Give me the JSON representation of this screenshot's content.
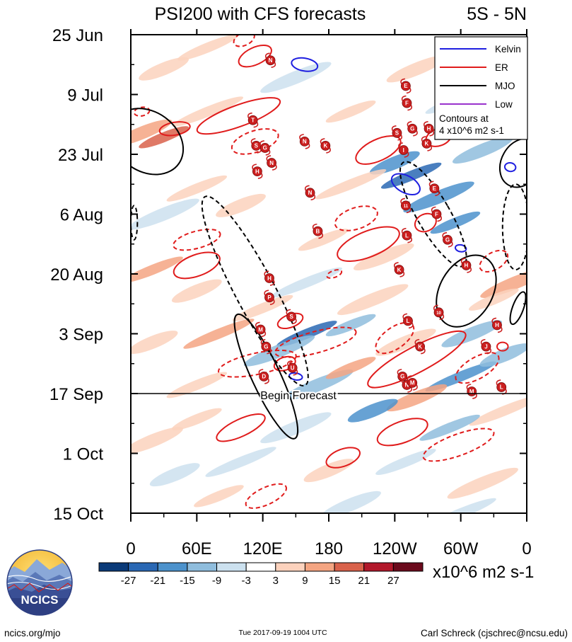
{
  "chart_data": {
    "type": "heatmap",
    "title": "PSI200 with CFS forecasts",
    "region": "5S - 5N",
    "x_tick_labels": [
      "0",
      "60E",
      "120E",
      "180",
      "120W",
      "60W",
      "0"
    ],
    "x_tick_degrees": [
      0,
      60,
      120,
      180,
      240,
      300,
      360
    ],
    "y_tick_labels": [
      "25 Jun",
      "9 Jul",
      "23 Jul",
      "6 Aug",
      "20 Aug",
      "3 Sep",
      "17 Sep",
      "1 Oct",
      "15 Oct"
    ],
    "y_tick_days": [
      0,
      14,
      28,
      42,
      56,
      70,
      84,
      98,
      112
    ],
    "forecast_start_day": 84,
    "forecast_label": "Begin Forecast",
    "legend": {
      "entries": [
        {
          "label": "Kelvin",
          "color": "#1f1fe0"
        },
        {
          "label": "ER",
          "color": "#e01c1c"
        },
        {
          "label": "MJO",
          "color": "#000000"
        },
        {
          "label": "Low",
          "color": "#9933cc"
        }
      ],
      "note_line1": "Contours at",
      "note_line2": "4 x10^6 m2 s-1"
    },
    "colorbar": {
      "labels": [
        "-27",
        "-21",
        "-15",
        "-9",
        "-3",
        "3",
        "9",
        "15",
        "21",
        "27"
      ],
      "colors": [
        "#0a3a78",
        "#2a68b4",
        "#4c92cc",
        "#8fbddd",
        "#cce1ef",
        "#ffffff",
        "#fcd2bd",
        "#f4a582",
        "#d9624b",
        "#b2182b",
        "#6b0a1c"
      ],
      "units": "x10^6 m2 s-1"
    },
    "contours": [
      {
        "wave": "Kelvin",
        "sign": "pos",
        "lon": 158,
        "day": 7,
        "dlon": 12,
        "dday": 1.5,
        "angle": 10
      },
      {
        "wave": "Kelvin",
        "sign": "pos",
        "lon": 250,
        "day": 35,
        "dlon": 14,
        "dday": 2,
        "angle": 28
      },
      {
        "wave": "Kelvin",
        "sign": "pos",
        "lon": 345,
        "day": 31,
        "dlon": 5,
        "dday": 1,
        "angle": 10
      },
      {
        "wave": "Kelvin",
        "sign": "pos",
        "lon": 150,
        "day": 80,
        "dlon": 6,
        "dday": 0.8,
        "angle": 10
      },
      {
        "wave": "Kelvin",
        "sign": "pos",
        "lon": 300,
        "day": 50,
        "dlon": 5,
        "dday": 0.8,
        "angle": 10
      },
      {
        "wave": "ER",
        "sign": "pos",
        "lon": 113,
        "day": 5,
        "dlon": 16,
        "dday": 2,
        "angle": -25
      },
      {
        "wave": "ER",
        "sign": "neg",
        "lon": 103,
        "day": 1,
        "dlon": 10,
        "dday": 1.5,
        "angle": -25
      },
      {
        "wave": "ER",
        "sign": "pos",
        "lon": 98,
        "day": 19,
        "dlon": 40,
        "dday": 2.5,
        "angle": -20
      },
      {
        "wave": "ER",
        "sign": "neg",
        "lon": 113,
        "day": 25,
        "dlon": 22,
        "dday": 2.5,
        "angle": -18
      },
      {
        "wave": "ER",
        "sign": "pos",
        "lon": 40,
        "day": 22,
        "dlon": 14,
        "dday": 1.5,
        "angle": -10
      },
      {
        "wave": "ER",
        "sign": "pos",
        "lon": 225,
        "day": 27,
        "dlon": 22,
        "dday": 2.5,
        "angle": -25
      },
      {
        "wave": "ER",
        "sign": "pos",
        "lon": 280,
        "day": 24,
        "dlon": 12,
        "dday": 2,
        "angle": -20
      },
      {
        "wave": "ER",
        "sign": "neg",
        "lon": 205,
        "day": 43,
        "dlon": 20,
        "dday": 2.5,
        "angle": -18
      },
      {
        "wave": "ER",
        "sign": "pos",
        "lon": 216,
        "day": 49,
        "dlon": 30,
        "dday": 3,
        "angle": -22
      },
      {
        "wave": "ER",
        "sign": "pos",
        "lon": 268,
        "day": 44,
        "dlon": 10,
        "dday": 2,
        "angle": -25
      },
      {
        "wave": "ER",
        "sign": "neg",
        "lon": 60,
        "day": 48,
        "dlon": 22,
        "dday": 2,
        "angle": -15
      },
      {
        "wave": "ER",
        "sign": "pos",
        "lon": 60,
        "day": 54,
        "dlon": 22,
        "dday": 2.5,
        "angle": -20
      },
      {
        "wave": "ER",
        "sign": "neg",
        "lon": 330,
        "day": 53,
        "dlon": 14,
        "dday": 2,
        "angle": -30
      },
      {
        "wave": "ER",
        "sign": "neg",
        "lon": 185,
        "day": 56,
        "dlon": 7,
        "dday": 0.8,
        "angle": -20
      },
      {
        "wave": "ER",
        "sign": "pos",
        "lon": 145,
        "day": 67,
        "dlon": 12,
        "dday": 1.5,
        "angle": -20
      },
      {
        "wave": "ER",
        "sign": "neg",
        "lon": 168,
        "day": 72,
        "dlon": 38,
        "dday": 2.5,
        "angle": -15
      },
      {
        "wave": "ER",
        "sign": "neg",
        "lon": 240,
        "day": 71,
        "dlon": 20,
        "dday": 2.5,
        "angle": -35
      },
      {
        "wave": "ER",
        "sign": "pos",
        "lon": 260,
        "day": 76,
        "dlon": 50,
        "dday": 3,
        "angle": -28
      },
      {
        "wave": "ER",
        "sign": "neg",
        "lon": 315,
        "day": 78,
        "dlon": 22,
        "dday": 2.5,
        "angle": -30
      },
      {
        "wave": "ER",
        "sign": "neg",
        "lon": 115,
        "day": 77,
        "dlon": 36,
        "dday": 2.5,
        "angle": -12
      },
      {
        "wave": "ER",
        "sign": "pos",
        "lon": 140,
        "day": 77,
        "dlon": 10,
        "dday": 1.5,
        "angle": -20
      },
      {
        "wave": "ER",
        "sign": "pos",
        "lon": 338,
        "day": 73,
        "dlon": 5,
        "dday": 1,
        "angle": 0
      },
      {
        "wave": "ER",
        "sign": "neg",
        "lon": 10,
        "day": 18,
        "dlon": 7,
        "dday": 1,
        "angle": -10
      },
      {
        "wave": "ER",
        "sign": "pos",
        "lon": 100,
        "day": 92,
        "dlon": 24,
        "dday": 2,
        "angle": -25
      },
      {
        "wave": "ER",
        "sign": "pos",
        "lon": 193,
        "day": 99,
        "dlon": 16,
        "dday": 2,
        "angle": -20
      },
      {
        "wave": "ER",
        "sign": "pos",
        "lon": 247,
        "day": 93,
        "dlon": 24,
        "dday": 2.5,
        "angle": -20
      },
      {
        "wave": "ER",
        "sign": "neg",
        "lon": 298,
        "day": 96,
        "dlon": 34,
        "dday": 2.5,
        "angle": -20
      },
      {
        "wave": "ER",
        "sign": "neg",
        "lon": 123,
        "day": 108,
        "dlon": 20,
        "dday": 2,
        "angle": -25
      },
      {
        "wave": "MJO",
        "sign": "pos",
        "lon": 15,
        "day": 25,
        "dlon": 35,
        "dday": 7,
        "angle": 35
      },
      {
        "wave": "MJO",
        "sign": "neg",
        "lon": 113,
        "day": 60,
        "dlon": 18,
        "dday": 25,
        "angle": -28
      },
      {
        "wave": "MJO",
        "sign": "pos",
        "lon": 123,
        "day": 80,
        "dlon": 13,
        "dday": 16,
        "angle": -25
      },
      {
        "wave": "MJO",
        "sign": "neg",
        "lon": 275,
        "day": 42,
        "dlon": 15,
        "dday": 14,
        "angle": -30
      },
      {
        "wave": "MJO",
        "sign": "pos",
        "lon": 305,
        "day": 60,
        "dlon": 24,
        "dday": 9,
        "angle": 30
      },
      {
        "wave": "MJO",
        "sign": "pos",
        "lon": 355,
        "day": 30,
        "dlon": 18,
        "dday": 6,
        "angle": 30
      },
      {
        "wave": "MJO",
        "sign": "neg",
        "lon": 350,
        "day": 45,
        "dlon": 12,
        "dday": 10,
        "angle": 0
      },
      {
        "wave": "MJO",
        "sign": "pos",
        "lon": 352,
        "day": 64,
        "dlon": 5,
        "dday": 4,
        "angle": 20
      },
      {
        "wave": "MJO",
        "sign": "neg",
        "lon": 3,
        "day": 44,
        "dlon": 3,
        "dday": 4,
        "angle": 0
      }
    ],
    "storms": [
      {
        "label": "N",
        "lon": 127,
        "day": 6
      },
      {
        "label": "E",
        "lon": 250,
        "day": 12
      },
      {
        "label": "F",
        "lon": 251,
        "day": 16
      },
      {
        "label": "T",
        "lon": 111,
        "day": 20
      },
      {
        "label": "G",
        "lon": 256,
        "day": 22
      },
      {
        "label": "S",
        "lon": 242,
        "day": 23
      },
      {
        "label": "H",
        "lon": 271,
        "day": 22
      },
      {
        "label": "S",
        "lon": 114,
        "day": 26
      },
      {
        "label": "G",
        "lon": 122,
        "day": 26.5
      },
      {
        "label": "N",
        "lon": 158,
        "day": 25
      },
      {
        "label": "K",
        "lon": 177,
        "day": 26
      },
      {
        "label": "I",
        "lon": 248,
        "day": 27
      },
      {
        "label": "K",
        "lon": 269,
        "day": 25.5
      },
      {
        "label": "H",
        "lon": 115,
        "day": 32
      },
      {
        "label": "N",
        "lon": 128,
        "day": 30
      },
      {
        "label": "E",
        "lon": 276,
        "day": 36
      },
      {
        "label": "N",
        "lon": 163,
        "day": 37
      },
      {
        "label": "11",
        "lon": 250,
        "day": 40
      },
      {
        "label": "F",
        "lon": 278,
        "day": 42
      },
      {
        "label": "B",
        "lon": 170,
        "day": 46
      },
      {
        "label": "L",
        "lon": 251,
        "day": 47
      },
      {
        "label": "G",
        "lon": 288,
        "day": 48
      },
      {
        "label": "H",
        "lon": 305,
        "day": 54
      },
      {
        "label": "K",
        "lon": 244,
        "day": 55
      },
      {
        "label": "H",
        "lon": 126,
        "day": 57
      },
      {
        "label": "P",
        "lon": 126,
        "day": 61.5
      },
      {
        "label": "S",
        "lon": 146,
        "day": 66
      },
      {
        "label": "10",
        "lon": 280,
        "day": 65
      },
      {
        "label": "L",
        "lon": 252,
        "day": 67
      },
      {
        "label": "M",
        "lon": 118,
        "day": 69
      },
      {
        "label": "G",
        "lon": 123,
        "day": 73
      },
      {
        "label": "K",
        "lon": 263,
        "day": 73
      },
      {
        "label": "J",
        "lon": 323,
        "day": 73
      },
      {
        "label": "H",
        "lon": 333,
        "day": 68
      },
      {
        "label": "U",
        "lon": 147,
        "day": 78
      },
      {
        "label": "D",
        "lon": 121,
        "day": 80
      },
      {
        "label": "G",
        "lon": 247,
        "day": 80
      },
      {
        "label": "N",
        "lon": 251,
        "day": 82
      },
      {
        "label": "M",
        "lon": 256,
        "day": 81.5
      },
      {
        "label": "M",
        "lon": 310,
        "day": 83.5
      },
      {
        "label": "L",
        "lon": 337,
        "day": 82.5
      }
    ],
    "anomaly_blobs": [
      {
        "lon": 30,
        "day": 24,
        "v": 21
      },
      {
        "lon": 10,
        "day": 23,
        "v": 15
      },
      {
        "lon": 70,
        "day": 18,
        "v": 9
      },
      {
        "lon": 30,
        "day": 8,
        "v": 9
      },
      {
        "lon": 70,
        "day": 3,
        "v": 9
      },
      {
        "lon": 150,
        "day": 10,
        "v": -3
      },
      {
        "lon": 200,
        "day": 18,
        "v": 9
      },
      {
        "lon": 260,
        "day": 8,
        "v": 9
      },
      {
        "lon": 300,
        "day": 15,
        "v": -3
      },
      {
        "lon": 240,
        "day": 30,
        "v": -15
      },
      {
        "lon": 255,
        "day": 33,
        "v": -21
      },
      {
        "lon": 280,
        "day": 38,
        "v": -15
      },
      {
        "lon": 295,
        "day": 44,
        "v": -15
      },
      {
        "lon": 320,
        "day": 27,
        "v": -9
      },
      {
        "lon": 200,
        "day": 35,
        "v": 9
      },
      {
        "lon": 100,
        "day": 40,
        "v": 9
      },
      {
        "lon": 60,
        "day": 36,
        "v": 9
      },
      {
        "lon": 30,
        "day": 42,
        "v": -3
      },
      {
        "lon": 175,
        "day": 48,
        "v": 9
      },
      {
        "lon": 230,
        "day": 52,
        "v": 9
      },
      {
        "lon": 160,
        "day": 58,
        "v": -3
      },
      {
        "lon": 60,
        "day": 60,
        "v": 9
      },
      {
        "lon": 20,
        "day": 55,
        "v": 15
      },
      {
        "lon": 350,
        "day": 58,
        "v": 15
      },
      {
        "lon": 330,
        "day": 62,
        "v": 9
      },
      {
        "lon": 310,
        "day": 70,
        "v": -9
      },
      {
        "lon": 300,
        "day": 80,
        "v": -15
      },
      {
        "lon": 340,
        "day": 75,
        "v": -9
      },
      {
        "lon": 160,
        "day": 70,
        "v": -21
      },
      {
        "lon": 135,
        "day": 74,
        "v": -9
      },
      {
        "lon": 200,
        "day": 68,
        "v": -9
      },
      {
        "lon": 250,
        "day": 72,
        "v": 9
      },
      {
        "lon": 80,
        "day": 70,
        "v": 15
      },
      {
        "lon": 20,
        "day": 72,
        "v": 9
      },
      {
        "lon": 60,
        "day": 82,
        "v": 9
      },
      {
        "lon": 170,
        "day": 82,
        "v": -9
      },
      {
        "lon": 200,
        "day": 78,
        "v": 15
      },
      {
        "lon": 260,
        "day": 85,
        "v": 15
      },
      {
        "lon": 340,
        "day": 88,
        "v": 9
      },
      {
        "lon": 220,
        "day": 88,
        "v": -15
      },
      {
        "lon": 290,
        "day": 92,
        "v": -9
      },
      {
        "lon": 150,
        "day": 92,
        "v": -3
      },
      {
        "lon": 60,
        "day": 90,
        "v": 9
      },
      {
        "lon": 20,
        "day": 95,
        "v": 9
      },
      {
        "lon": 100,
        "day": 100,
        "v": -3
      },
      {
        "lon": 180,
        "day": 102,
        "v": 9
      },
      {
        "lon": 250,
        "day": 100,
        "v": -3
      },
      {
        "lon": 320,
        "day": 105,
        "v": 9
      },
      {
        "lon": 80,
        "day": 108,
        "v": 9
      },
      {
        "lon": 200,
        "day": 110,
        "v": -3
      },
      {
        "lon": 300,
        "day": 112,
        "v": -3
      },
      {
        "lon": 40,
        "day": 103,
        "v": -3
      },
      {
        "lon": 120,
        "day": 64,
        "v": 9
      },
      {
        "lon": 220,
        "day": 62,
        "v": 9
      }
    ]
  },
  "logo": {
    "text": "NCICS"
  },
  "footer": {
    "left": "ncics.org/mjo",
    "center": "Tue 2017-09-19 1004 UTC",
    "right": "Carl Schreck (cjschrec@ncsu.edu)"
  }
}
